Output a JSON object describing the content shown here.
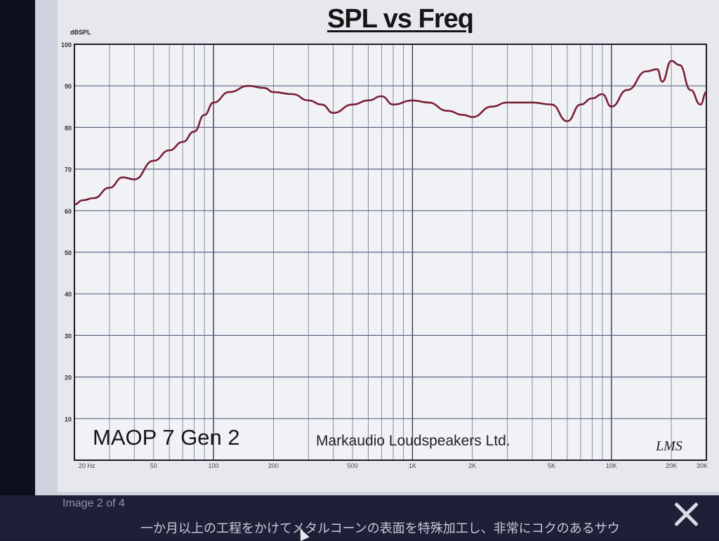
{
  "lightbox": {
    "counter": "Image 2 of 4",
    "description": "一か月以上の工程をかけてメタルコーンの表面を特殊加工し、非常にコクのあるサウ",
    "close_icon": "close-icon"
  },
  "chart_data": {
    "type": "line",
    "title": "SPL vs Freq",
    "ylabel": "dBSPL",
    "xlabel": "",
    "xscale": "log",
    "xlim": [
      20,
      30000
    ],
    "ylim": [
      0,
      100
    ],
    "grid": true,
    "y_ticks": [
      "100",
      "90",
      "80",
      "70",
      "60",
      "50",
      "40",
      "30",
      "20",
      "10"
    ],
    "x_ticks": [
      {
        "value": 20,
        "label": "20 Hz"
      },
      {
        "value": 50,
        "label": "50"
      },
      {
        "value": 100,
        "label": "100"
      },
      {
        "value": 200,
        "label": "200"
      },
      {
        "value": 500,
        "label": "500"
      },
      {
        "value": 1000,
        "label": "1K"
      },
      {
        "value": 2000,
        "label": "2K"
      },
      {
        "value": 5000,
        "label": "5K"
      },
      {
        "value": 10000,
        "label": "10K"
      },
      {
        "value": 20000,
        "label": "20K"
      },
      {
        "value": 30000,
        "label": "30K"
      }
    ],
    "annotations": {
      "model": "MAOP 7 Gen 2",
      "company": "Markaudio Loudspeakers Ltd.",
      "software": "LMS"
    },
    "series": [
      {
        "color": "#7a1f35",
        "x": [
          20,
          22,
          25,
          30,
          35,
          40,
          50,
          60,
          70,
          80,
          90,
          100,
          120,
          150,
          180,
          200,
          250,
          300,
          350,
          400,
          500,
          600,
          700,
          800,
          1000,
          1200,
          1500,
          1800,
          2000,
          2500,
          3000,
          4000,
          5000,
          6000,
          7000,
          8000,
          9000,
          10000,
          12000,
          15000,
          17000,
          18000,
          20000,
          22000,
          25000,
          28000,
          30000
        ],
        "y": [
          61.5,
          62.5,
          63,
          65.5,
          68,
          67.5,
          72,
          74.5,
          76.5,
          79,
          83,
          86,
          88.5,
          90,
          89.5,
          88.5,
          88,
          86.5,
          85.5,
          83.5,
          85.5,
          86.5,
          87.5,
          85.5,
          86.5,
          86,
          84,
          83,
          82.5,
          85,
          86,
          86,
          85.5,
          81.5,
          85.5,
          87,
          88,
          85,
          89,
          93.5,
          94,
          91,
          96,
          95,
          89,
          85.5,
          88.5
        ]
      }
    ]
  }
}
